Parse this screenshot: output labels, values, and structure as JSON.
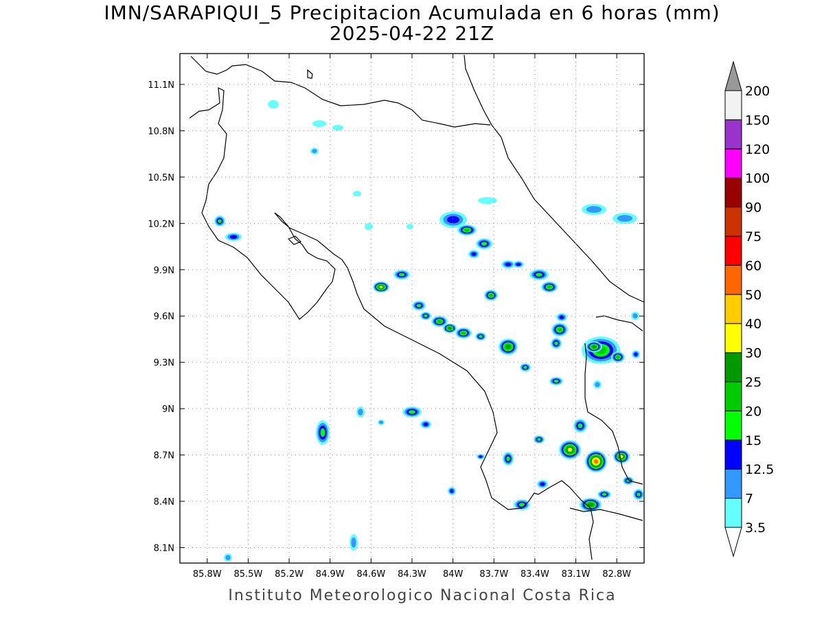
{
  "title_line1": "IMN/SARAPIQUI_5 Precipitacion Acumulada en 6 horas (mm)",
  "title_line2": "2025-04-22 21Z",
  "footer": "Instituto Meteorologico Nacional Costa Rica",
  "map": {
    "lon_range": [
      -86.0,
      -82.6
    ],
    "lat_range": [
      8.0,
      11.3
    ],
    "lon_ticks": [
      "85.8W",
      "85.5W",
      "85.2W",
      "84.9W",
      "84.6W",
      "84.3W",
      "84W",
      "83.7W",
      "83.4W",
      "83.1W",
      "82.8W"
    ],
    "lon_values": [
      -85.8,
      -85.5,
      -85.2,
      -84.9,
      -84.6,
      -84.3,
      -84.0,
      -83.7,
      -83.4,
      -83.1,
      -82.8
    ],
    "lat_ticks": [
      "11.1N",
      "10.8N",
      "10.5N",
      "10.2N",
      "9.9N",
      "9.6N",
      "9.3N",
      "9N",
      "8.7N",
      "8.4N",
      "8.1N"
    ],
    "lat_values": [
      11.1,
      10.8,
      10.5,
      10.2,
      9.9,
      9.6,
      9.3,
      9.0,
      8.7,
      8.4,
      8.1
    ],
    "grid": true
  },
  "colorbar": {
    "labels": [
      "3.5",
      "7",
      "12.5",
      "15",
      "20",
      "25",
      "30",
      "40",
      "50",
      "60",
      "75",
      "90",
      "100",
      "120",
      "150",
      "200"
    ],
    "colors": [
      "#66ffff",
      "#3399ff",
      "#0000ff",
      "#00ff00",
      "#00cc00",
      "#009900",
      "#ffff00",
      "#ffcc00",
      "#ff6600",
      "#ff0000",
      "#cc3300",
      "#990000",
      "#ff00ff",
      "#9933cc",
      "#f2f2f2",
      "#999999"
    ]
  }
}
